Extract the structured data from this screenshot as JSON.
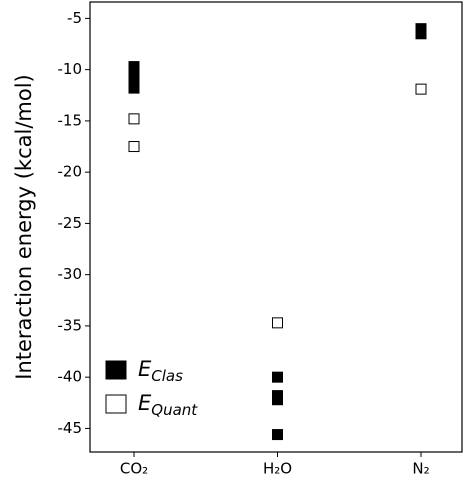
{
  "chart_data": {
    "type": "strip",
    "y_label": "Interaction energy (kcal/mol)",
    "categories": [
      "CO₂",
      "H₂O",
      "N₂"
    ],
    "series": [
      {
        "name": "EClas",
        "color": "#000000",
        "filled": true,
        "values": [
          [
            -9.7,
            -10.2,
            -10.7,
            -11.2,
            -11.8
          ],
          [
            -40.0,
            -41.8,
            -42.2,
            -45.6
          ],
          [
            -6.0,
            -6.5
          ]
        ]
      },
      {
        "name": "EQuant",
        "color": "#000000",
        "filled": false,
        "values": [
          [
            -14.8,
            -17.5
          ],
          [
            -34.7
          ],
          [
            -11.9
          ]
        ]
      }
    ],
    "ylim": [
      -47.3,
      -3.4
    ],
    "yticks": [
      -5,
      -10,
      -15,
      -20,
      -25,
      -30,
      -35,
      -40,
      -45
    ],
    "legend": "lower left"
  }
}
